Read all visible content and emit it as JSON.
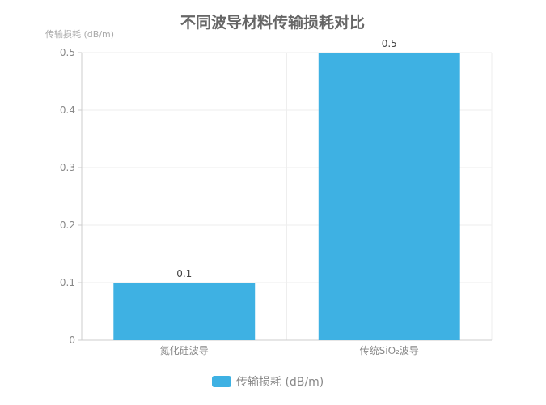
{
  "chart_data": {
    "type": "bar",
    "title": "不同波导材料传输损耗对比",
    "ylabel": "传输损耗 (dB/m)",
    "xlabel": "",
    "categories": [
      "氮化硅波导",
      "传统SiO₂波导"
    ],
    "series": [
      {
        "name": "传输损耗 (dB/m)",
        "values": [
          0.1,
          0.5
        ]
      }
    ],
    "ylim": [
      0,
      0.5
    ],
    "yticks": [
      "0",
      "0.1",
      "0.2",
      "0.3",
      "0.4",
      "0.5"
    ],
    "data_labels": [
      "0.1",
      "0.5"
    ],
    "grid": true,
    "legend_position": "bottom",
    "colors": {
      "bar": "#3eb1e3",
      "title": "#666666",
      "axis_text": "#888888",
      "grid": "#eeeeee"
    }
  }
}
